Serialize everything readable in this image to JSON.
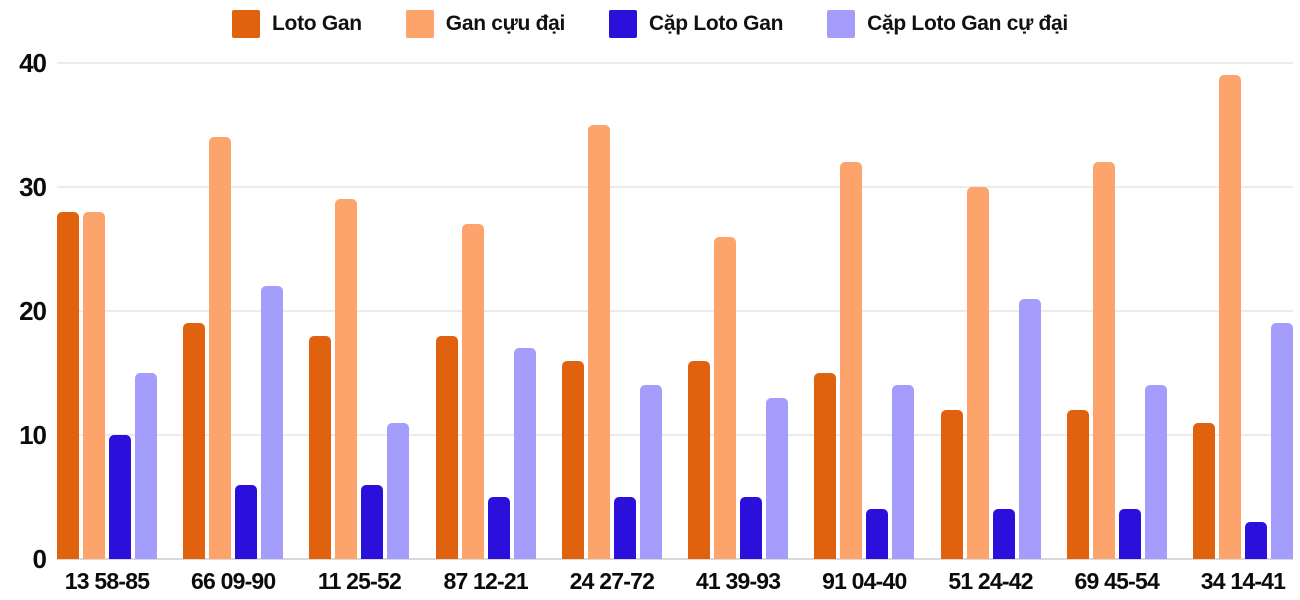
{
  "colors": {
    "background": "#ffffff",
    "grid_line": "#ebebeb",
    "baseline": "#d9d9d9",
    "text": "#0b0b0b"
  },
  "chart_data": {
    "type": "bar",
    "title": "",
    "xlabel": "",
    "ylabel": "",
    "ylim": [
      0,
      40
    ],
    "yticks": [
      0,
      10,
      20,
      30,
      40
    ],
    "yticklabels": [
      "0",
      "10",
      "20",
      "30",
      "40"
    ],
    "grid": true,
    "legend_position": "top",
    "categories": [
      "13 58-85",
      "66 09-90",
      "11 25-52",
      "87 12-21",
      "24 27-72",
      "41 39-93",
      "91 04-40",
      "51 24-42",
      "69 45-54",
      "34 14-41"
    ],
    "series": [
      {
        "key": "loto-gan",
        "name": "Loto Gan",
        "color": "#e0620f",
        "values": [
          28,
          19,
          18,
          18,
          16,
          16,
          15,
          12,
          12,
          11
        ]
      },
      {
        "key": "gan-cuu-dai",
        "name": "Gan cựu đại",
        "color": "#fca46c",
        "values": [
          28,
          34,
          29,
          27,
          35,
          26,
          32,
          30,
          32,
          39
        ]
      },
      {
        "key": "cap-loto-gan",
        "name": "Cặp Loto Gan",
        "color": "#2b10dc",
        "values": [
          10,
          6,
          6,
          5,
          5,
          5,
          4,
          4,
          4,
          3
        ]
      },
      {
        "key": "cap-loto-gan-cu-dai",
        "name": "Cặp Loto Gan cự đại",
        "color": "#a49dfb",
        "values": [
          15,
          22,
          11,
          17,
          14,
          13,
          14,
          21,
          14,
          19
        ]
      }
    ]
  }
}
